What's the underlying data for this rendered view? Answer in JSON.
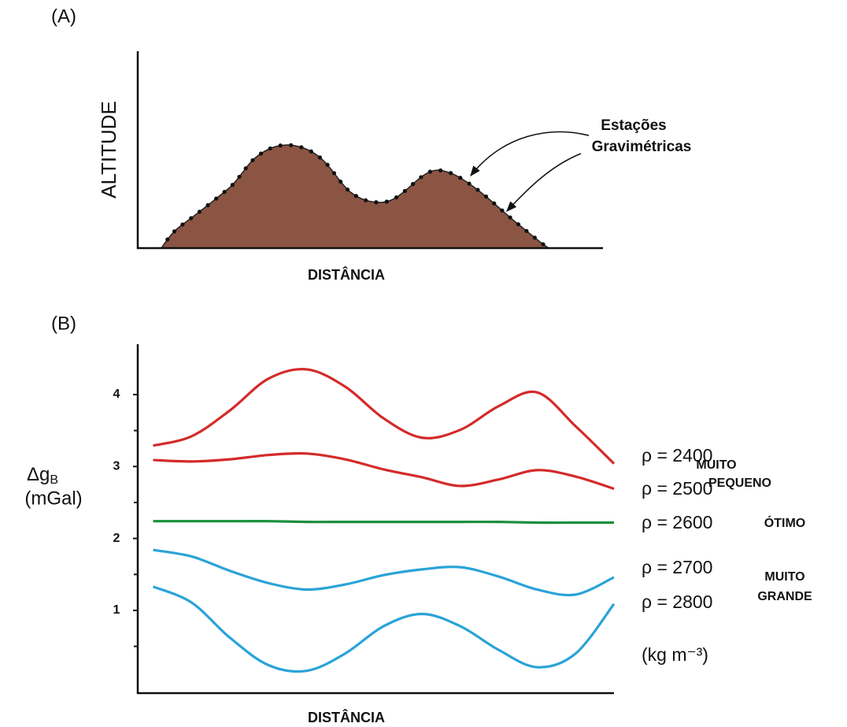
{
  "panel_a": {
    "label": "(A)",
    "y_label": "ALTITUDE",
    "x_label": "DISTÂNCIA",
    "annotation": [
      "Estações",
      "Gravimétricas"
    ]
  },
  "chart_data": {
    "type": "line",
    "label": "(B)",
    "y_label": [
      "Δg",
      "B",
      "(mGal)"
    ],
    "x_label": "DISTÂNCIA",
    "x": [
      0,
      1,
      2,
      3,
      4,
      5,
      6,
      7,
      8,
      9,
      10,
      11,
      12
    ],
    "xlim": [
      -0.4,
      12
    ],
    "ylim": [
      -0.15,
      4.7
    ],
    "yticks": [
      1,
      2,
      3,
      4
    ],
    "yminorticks": [
      0.5,
      1.5,
      2.5,
      3.5
    ],
    "series": [
      {
        "name": "ρ = 2400",
        "color": "#d42a2a",
        "label_color": "#d81b5a",
        "values": [
          3.29,
          3.42,
          3.78,
          4.22,
          4.35,
          4.11,
          3.67,
          3.4,
          3.51,
          3.84,
          4.03,
          3.56,
          3.04
        ]
      },
      {
        "name": "ρ = 2500",
        "color": "#d42a2a",
        "label_color": "#d81b5a",
        "values": [
          3.09,
          3.07,
          3.1,
          3.16,
          3.18,
          3.1,
          2.96,
          2.85,
          2.73,
          2.82,
          2.95,
          2.86,
          2.69
        ]
      },
      {
        "name": "ρ = 2600",
        "color": "#1a8f3c",
        "label_color": "#2a9a78",
        "values": [
          2.24,
          2.24,
          2.24,
          2.24,
          2.23,
          2.23,
          2.23,
          2.23,
          2.23,
          2.23,
          2.22,
          2.22,
          2.22
        ]
      },
      {
        "name": "ρ = 2700",
        "color": "#2aa3d8",
        "label_color": "#29a9c9",
        "values": [
          1.84,
          1.75,
          1.55,
          1.38,
          1.29,
          1.36,
          1.49,
          1.57,
          1.6,
          1.47,
          1.29,
          1.22,
          1.46
        ]
      },
      {
        "name": "ρ = 2800",
        "color": "#2aa3d8",
        "label_color": "#29a9c9",
        "values": [
          1.33,
          1.11,
          0.62,
          0.24,
          0.16,
          0.4,
          0.78,
          0.95,
          0.78,
          0.45,
          0.21,
          0.4,
          1.09
        ]
      }
    ],
    "groups": [
      {
        "text": [
          "MUITO",
          "PEQUENO"
        ],
        "color": "#d81b5a"
      },
      {
        "text": [
          "ÓTIMO"
        ],
        "color": "#1a8f3c"
      },
      {
        "text": [
          "MUITO",
          "GRANDE"
        ],
        "color": "#29a9c9"
      }
    ],
    "units": "(kg m⁻³)"
  }
}
